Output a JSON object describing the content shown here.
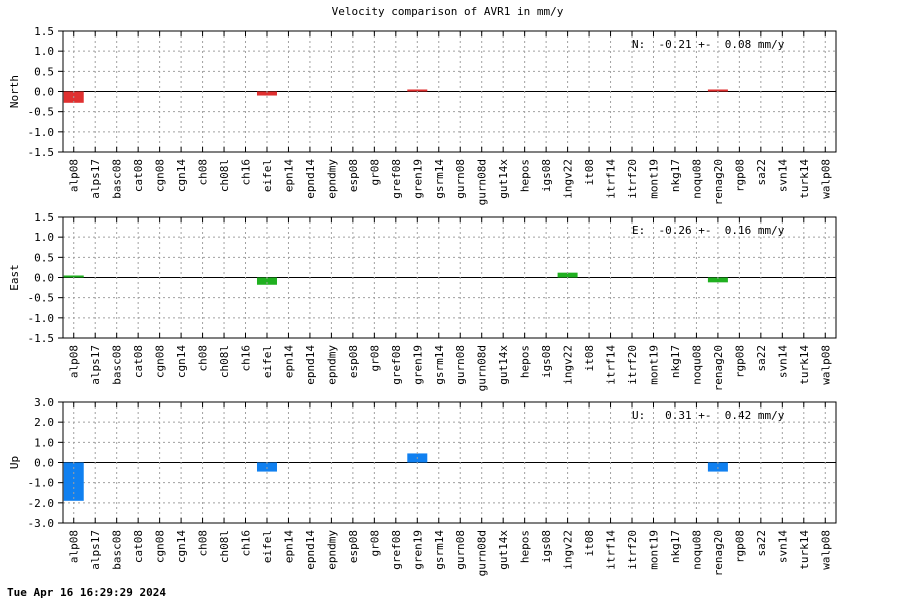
{
  "figure": {
    "title": "Velocity comparison of AVR1 in mm/y",
    "timestamp": "Tue Apr 16 16:29:29 2024"
  },
  "chart_data": [
    {
      "type": "bar",
      "ylabel": "North",
      "annotation": "N:  -0.21 +-  0.08 mm/y",
      "color": "#e03030",
      "ylim": [
        -1.5,
        1.5
      ],
      "yticks": [
        "1.5",
        "1.0",
        "0.5",
        "0.0",
        "-0.5",
        "-1.0",
        "-1.5"
      ],
      "grid": true,
      "categories": [
        "alp08",
        "alps17",
        "basc08",
        "cat08",
        "cgn08",
        "cgn14",
        "ch08",
        "ch08l",
        "ch16",
        "eifel",
        "epn14",
        "epnd14",
        "epndmy",
        "esp08",
        "gr08",
        "gref08",
        "gren19",
        "gsrm14",
        "gurn08",
        "gurn08d",
        "gut14x",
        "hepos",
        "igs08",
        "ingv22",
        "it08",
        "itrf14",
        "itrf20",
        "mont19",
        "nkg17",
        "noqu08",
        "renag20",
        "rgp08",
        "sa22",
        "svn14",
        "turk14",
        "walp08"
      ],
      "values": [
        -0.28,
        0,
        0,
        0,
        0,
        0,
        0,
        0,
        0,
        -0.1,
        0,
        0,
        0,
        0,
        0,
        0,
        0.05,
        0,
        0,
        0,
        0,
        0,
        0,
        0,
        0,
        0,
        0,
        0,
        0,
        0,
        0.05,
        0,
        0,
        0,
        0,
        0
      ]
    },
    {
      "type": "bar",
      "ylabel": "East",
      "annotation": "E:  -0.26 +-  0.16 mm/y",
      "color": "#20b020",
      "ylim": [
        -1.5,
        1.5
      ],
      "yticks": [
        "1.5",
        "1.0",
        "0.5",
        "0.0",
        "-0.5",
        "-1.0",
        "-1.5"
      ],
      "grid": true,
      "categories": [
        "alp08",
        "alps17",
        "basc08",
        "cat08",
        "cgn08",
        "cgn14",
        "ch08",
        "ch08l",
        "ch16",
        "eifel",
        "epn14",
        "epnd14",
        "epndmy",
        "esp08",
        "gr08",
        "gref08",
        "gren19",
        "gsrm14",
        "gurn08",
        "gurn08d",
        "gut14x",
        "hepos",
        "igs08",
        "ingv22",
        "it08",
        "itrf14",
        "itrf20",
        "mont19",
        "nkg17",
        "noqu08",
        "renag20",
        "rgp08",
        "sa22",
        "svn14",
        "turk14",
        "walp08"
      ],
      "values": [
        0.05,
        0,
        0,
        0,
        0,
        0,
        0,
        0,
        0,
        -0.18,
        0,
        0,
        0,
        0,
        0,
        0,
        0,
        0,
        0,
        0,
        0,
        0,
        0,
        0.12,
        0,
        0,
        0,
        0,
        0,
        0,
        -0.12,
        0,
        0,
        0,
        0,
        0
      ]
    },
    {
      "type": "bar",
      "ylabel": "Up",
      "annotation": "U:   0.31 +-  0.42 mm/y",
      "color": "#1080f0",
      "ylim": [
        -3.0,
        3.0
      ],
      "yticks": [
        "3.0",
        "2.0",
        "1.0",
        "0.0",
        "-1.0",
        "-2.0",
        "-3.0"
      ],
      "grid": true,
      "categories": [
        "alp08",
        "alps17",
        "basc08",
        "cat08",
        "cgn08",
        "cgn14",
        "ch08",
        "ch08l",
        "ch16",
        "eifel",
        "epn14",
        "epnd14",
        "epndmy",
        "esp08",
        "gr08",
        "gref08",
        "gren19",
        "gsrm14",
        "gurn08",
        "gurn08d",
        "gut14x",
        "hepos",
        "igs08",
        "ingv22",
        "it08",
        "itrf14",
        "itrf20",
        "mont19",
        "nkg17",
        "noqu08",
        "renag20",
        "rgp08",
        "sa22",
        "svn14",
        "turk14",
        "walp08"
      ],
      "values": [
        -1.9,
        0,
        0,
        0,
        0,
        0,
        0,
        0,
        0,
        -0.45,
        0,
        0,
        0,
        0,
        0,
        0,
        0.45,
        0,
        0,
        0,
        0,
        0,
        0,
        0,
        0,
        0,
        0,
        0,
        0,
        0,
        -0.45,
        0,
        0,
        0,
        0,
        0
      ]
    }
  ]
}
